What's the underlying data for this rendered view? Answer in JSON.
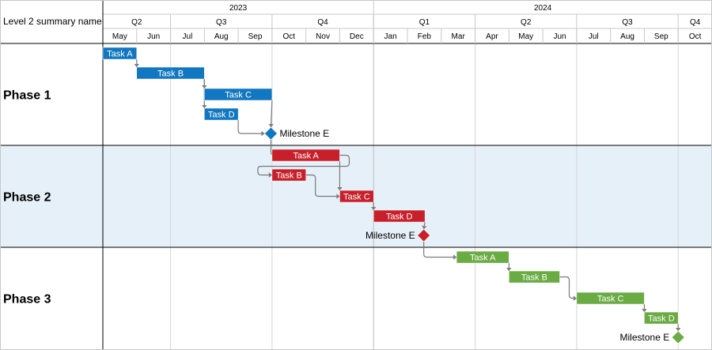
{
  "header": {
    "corner_label": "Level 2 summary name",
    "years": [
      "2023",
      "2024"
    ],
    "quarters": [
      "Q2",
      "Q3",
      "Q4",
      "Q1",
      "Q2",
      "Q3",
      "Q4"
    ],
    "months": [
      "May",
      "Jun",
      "Jul",
      "Aug",
      "Sep",
      "Oct",
      "Nov",
      "Dec",
      "Jan",
      "Feb",
      "Mar",
      "Apr",
      "May",
      "Jun",
      "Jul",
      "Aug",
      "Sep",
      "Oct"
    ]
  },
  "colors": {
    "phase1": "#1077c0",
    "phase2": "#c8202a",
    "phase3": "#6aab44",
    "connector": "#7a7a7a",
    "phase2_band": "#e6f0f8"
  },
  "chart_data": {
    "type": "gantt",
    "time_axis_start": "2023-05-01",
    "time_axis_end": "2024-10-31",
    "phases": [
      {
        "name": "Phase 1",
        "color": "#1077c0",
        "tasks": [
          {
            "name": "Task A",
            "start": "2023-05-01",
            "end": "2023-05-31"
          },
          {
            "name": "Task B",
            "start": "2023-06-01",
            "end": "2023-07-31"
          },
          {
            "name": "Task C",
            "start": "2023-08-01",
            "end": "2023-09-30"
          },
          {
            "name": "Task D",
            "start": "2023-08-01",
            "end": "2023-08-31"
          }
        ],
        "milestone": {
          "name": "Milestone E",
          "date": "2023-09-30",
          "label_side": "right"
        }
      },
      {
        "name": "Phase 2",
        "color": "#c8202a",
        "tasks": [
          {
            "name": "Task A",
            "start": "2023-10-01",
            "end": "2023-11-30"
          },
          {
            "name": "Task B",
            "start": "2023-10-01",
            "end": "2023-10-31"
          },
          {
            "name": "Task C",
            "start": "2023-12-01",
            "end": "2023-12-31"
          },
          {
            "name": "Task D",
            "start": "2024-01-01",
            "end": "2024-02-15"
          }
        ],
        "milestone": {
          "name": "Milestone E",
          "date": "2024-02-15",
          "label_side": "left"
        }
      },
      {
        "name": "Phase 3",
        "color": "#6aab44",
        "tasks": [
          {
            "name": "Task A",
            "start": "2024-03-15",
            "end": "2024-04-30"
          },
          {
            "name": "Task B",
            "start": "2024-05-01",
            "end": "2024-06-15"
          },
          {
            "name": "Task C",
            "start": "2024-07-01",
            "end": "2024-08-31"
          },
          {
            "name": "Task D",
            "start": "2024-09-01",
            "end": "2024-09-30"
          }
        ],
        "milestone": {
          "name": "Milestone E",
          "date": "2024-10-01",
          "label_side": "left"
        }
      }
    ],
    "dependencies": [
      {
        "from": [
          0,
          0
        ],
        "to": [
          0,
          1
        ]
      },
      {
        "from": [
          0,
          1
        ],
        "to": [
          0,
          2
        ]
      },
      {
        "from": [
          0,
          1
        ],
        "to": [
          0,
          3
        ]
      },
      {
        "from": [
          0,
          2
        ],
        "to": [
          0,
          "milestone"
        ]
      },
      {
        "from": [
          0,
          3
        ],
        "to": [
          0,
          "milestone"
        ]
      },
      {
        "from": [
          0,
          "milestone"
        ],
        "to": [
          1,
          0
        ]
      },
      {
        "from": [
          1,
          0
        ],
        "to": [
          1,
          1
        ]
      },
      {
        "from": [
          1,
          1
        ],
        "to": [
          1,
          2
        ]
      },
      {
        "from": [
          1,
          0
        ],
        "to": [
          1,
          2
        ]
      },
      {
        "from": [
          1,
          2
        ],
        "to": [
          1,
          3
        ]
      },
      {
        "from": [
          1,
          3
        ],
        "to": [
          1,
          "milestone"
        ]
      },
      {
        "from": [
          1,
          "milestone"
        ],
        "to": [
          2,
          0
        ]
      },
      {
        "from": [
          2,
          0
        ],
        "to": [
          2,
          1
        ]
      },
      {
        "from": [
          2,
          1
        ],
        "to": [
          2,
          2
        ]
      },
      {
        "from": [
          2,
          2
        ],
        "to": [
          2,
          3
        ]
      },
      {
        "from": [
          2,
          3
        ],
        "to": [
          2,
          "milestone"
        ]
      }
    ]
  }
}
